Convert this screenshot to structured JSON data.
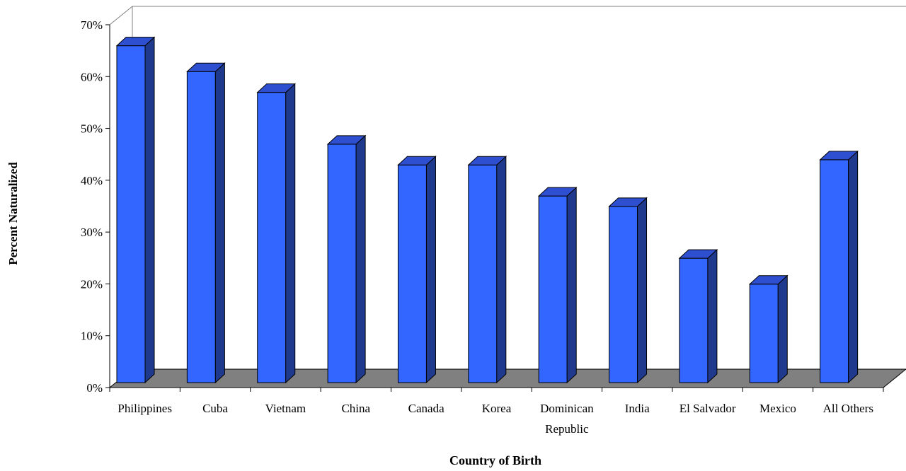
{
  "chart_data": {
    "type": "bar",
    "style": "3d-column",
    "categories": [
      "Philippines",
      "Cuba",
      "Vietnam",
      "China",
      "Canada",
      "Korea",
      "Dominican Republic",
      "India",
      "El Salvador",
      "Mexico",
      "All Others"
    ],
    "category_lines": [
      [
        "Philippines"
      ],
      [
        "Cuba"
      ],
      [
        "Vietnam"
      ],
      [
        "China"
      ],
      [
        "Canada"
      ],
      [
        "Korea"
      ],
      [
        "Dominican",
        "Republic"
      ],
      [
        "India"
      ],
      [
        "El Salvador"
      ],
      [
        "Mexico"
      ],
      [
        "All Others"
      ]
    ],
    "values": [
      0.65,
      0.6,
      0.56,
      0.46,
      0.42,
      0.42,
      0.36,
      0.34,
      0.24,
      0.19,
      0.43
    ],
    "xlabel": "Country of Birth",
    "ylabel": "Percent Naturalized",
    "ylim": [
      0,
      0.7
    ],
    "yticks": [
      "0%",
      "10%",
      "20%",
      "30%",
      "40%",
      "50%",
      "60%",
      "70%"
    ],
    "grid": false,
    "legend": "none",
    "colors": {
      "bar_front": "#3366ff",
      "bar_side": "#1f3a8c",
      "bar_top": "#2e4fd0",
      "floor": "#808080",
      "outline": "#000000"
    }
  }
}
